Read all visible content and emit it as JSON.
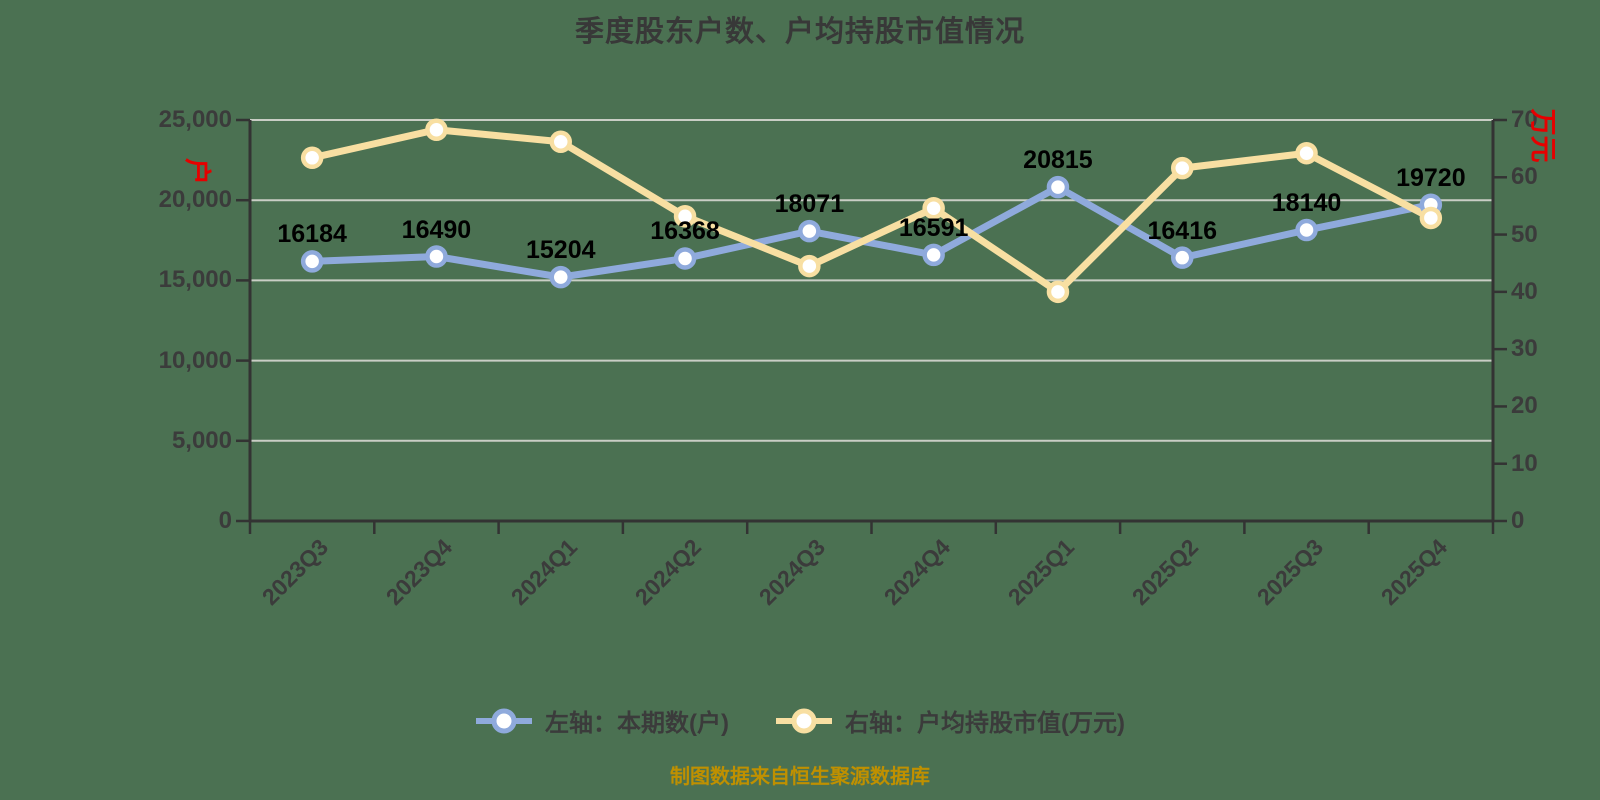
{
  "title": "季度股东户数、户均持股市值情况",
  "source_note": "制图数据来自恒生聚源数据库",
  "colors": {
    "background": "#4b7152",
    "grid": "#c9cec5",
    "axis": "#333333",
    "tick_text": "#3b3b3b",
    "title_text": "#383838",
    "value_label_text": "#000000",
    "blue_series": "#8faadc",
    "yellow_series": "#f8dfa2",
    "marker_fill": "#ffffff",
    "axis_unit_red": "#e60000",
    "source_text": "#bf9000"
  },
  "left_axis": {
    "unit_name": "户",
    "tick_labels": [
      "25,000",
      "20,000",
      "15,000",
      "10,000",
      "5,000",
      "0"
    ],
    "min": 0,
    "max": 25000
  },
  "right_axis": {
    "unit_name": "万元",
    "tick_labels": [
      "70",
      "60",
      "50",
      "40",
      "30",
      "20",
      "10",
      "0"
    ],
    "min": 0,
    "max": 70
  },
  "legend": {
    "items": [
      {
        "label": "左轴：本期数(户)",
        "color": "#8faadc"
      },
      {
        "label": "右轴：户均持股市值(万元)",
        "color": "#f8dfa2"
      }
    ]
  },
  "chart_data": {
    "type": "line",
    "categories": [
      "2023Q3",
      "2023Q4",
      "2024Q1",
      "2024Q2",
      "2024Q3",
      "2024Q4",
      "2025Q1",
      "2025Q2",
      "2025Q3",
      "2025Q4"
    ],
    "series": [
      {
        "name": "本期数(户)",
        "axis": "left",
        "color": "#8faadc",
        "values": [
          16184,
          16490,
          15204,
          16368,
          18071,
          16591,
          20815,
          16416,
          18140,
          19720
        ],
        "value_labels": [
          "16184",
          "16490",
          "15204",
          "16368",
          "18071",
          "16591",
          "20815",
          "16416",
          "18140",
          "19720"
        ]
      },
      {
        "name": "户均持股市值(万元)",
        "axis": "right",
        "color": "#f8dfa2",
        "values": [
          63.4,
          68.3,
          66.2,
          53.2,
          44.5,
          54.6,
          40.0,
          61.6,
          64.2,
          52.9
        ],
        "value_labels": []
      }
    ],
    "left_ylim": [
      0,
      25000
    ],
    "right_ylim": [
      0,
      70
    ],
    "grid": true,
    "legend_position": "bottom",
    "x_label_rotation": 45
  }
}
